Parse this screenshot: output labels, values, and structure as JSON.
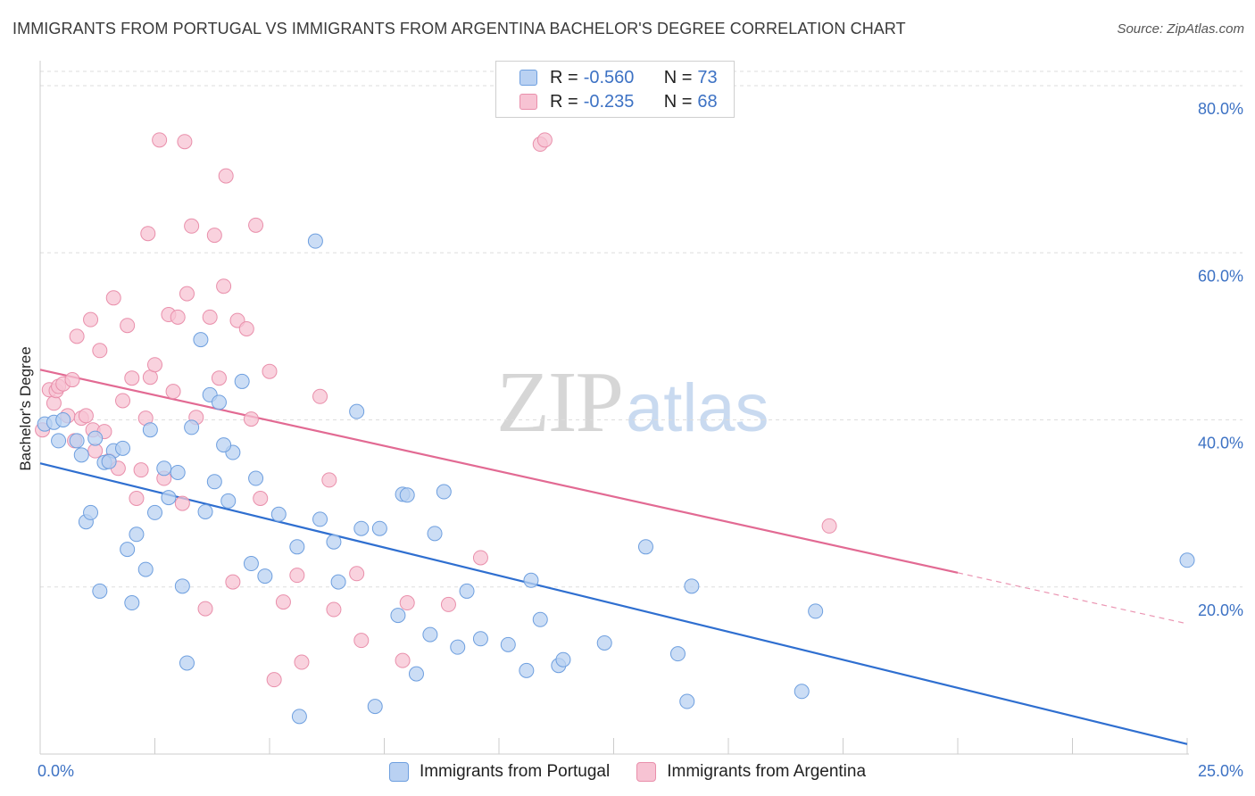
{
  "title": "IMMIGRANTS FROM PORTUGAL VS IMMIGRANTS FROM ARGENTINA BACHELOR'S DEGREE CORRELATION CHART",
  "source": "Source: ZipAtlas.com",
  "watermark": {
    "zip": "ZIP",
    "atlas": "atlas"
  },
  "legend": {
    "rows": [
      {
        "r_label": "R =",
        "r_value": "-0.560",
        "n_label": "N =",
        "n_value": "73"
      },
      {
        "r_label": "R =",
        "r_value": "-0.235",
        "n_label": "N =",
        "n_value": "68"
      }
    ]
  },
  "colors": {
    "portugal_fill": "#b9d1f2",
    "portugal_stroke": "#6e9fdf",
    "portugal_line": "#2f6fd0",
    "argentina_fill": "#f7c3d3",
    "argentina_stroke": "#e98fab",
    "argentina_line": "#e26a93",
    "grid": "#dddddd",
    "axis_text": "#3d72c4"
  },
  "chart_data": {
    "type": "scatter",
    "title": "IMMIGRANTS FROM PORTUGAL VS IMMIGRANTS FROM ARGENTINA BACHELOR'S DEGREE CORRELATION CHART",
    "xlabel": "",
    "ylabel": "Bachelor's Degree",
    "xlim": [
      0,
      25
    ],
    "ylim": [
      0,
      80
    ],
    "x_tick_labels": [
      "0.0%",
      "25.0%"
    ],
    "y_ticks": [
      20,
      40,
      60,
      80
    ],
    "y_tick_labels": [
      "20.0%",
      "40.0%",
      "60.0%",
      "80.0%"
    ],
    "grid": true,
    "legend_position": "top-center",
    "series": [
      {
        "name": "Immigrants from Portugal",
        "r": -0.56,
        "n": 73,
        "trend": {
          "x": [
            0,
            25
          ],
          "y": [
            34.8,
            1.2
          ]
        },
        "points": [
          [
            0.1,
            39.5
          ],
          [
            0.3,
            39.7
          ],
          [
            0.4,
            37.5
          ],
          [
            0.5,
            40.0
          ],
          [
            0.8,
            37.5
          ],
          [
            0.9,
            35.8
          ],
          [
            1.0,
            27.8
          ],
          [
            1.1,
            28.9
          ],
          [
            1.2,
            37.8
          ],
          [
            1.3,
            19.5
          ],
          [
            1.4,
            34.9
          ],
          [
            1.6,
            36.3
          ],
          [
            1.8,
            36.6
          ],
          [
            1.9,
            24.5
          ],
          [
            2.0,
            18.1
          ],
          [
            2.1,
            26.3
          ],
          [
            2.3,
            22.1
          ],
          [
            2.4,
            38.8
          ],
          [
            2.5,
            28.9
          ],
          [
            2.7,
            34.2
          ],
          [
            2.8,
            30.7
          ],
          [
            3.0,
            33.7
          ],
          [
            3.1,
            20.1
          ],
          [
            3.2,
            10.9
          ],
          [
            3.3,
            39.1
          ],
          [
            3.5,
            49.6
          ],
          [
            3.6,
            29.0
          ],
          [
            3.7,
            43.0
          ],
          [
            3.8,
            32.6
          ],
          [
            3.9,
            42.1
          ],
          [
            4.1,
            30.3
          ],
          [
            4.2,
            36.1
          ],
          [
            4.4,
            44.6
          ],
          [
            4.6,
            22.8
          ],
          [
            4.7,
            33.0
          ],
          [
            4.9,
            21.3
          ],
          [
            5.2,
            28.7
          ],
          [
            5.6,
            24.8
          ],
          [
            5.65,
            4.5
          ],
          [
            6.0,
            61.4
          ],
          [
            6.1,
            28.1
          ],
          [
            6.4,
            25.4
          ],
          [
            6.5,
            20.6
          ],
          [
            6.9,
            41.0
          ],
          [
            7.0,
            27.0
          ],
          [
            7.3,
            5.7
          ],
          [
            7.4,
            27.0
          ],
          [
            7.8,
            16.6
          ],
          [
            7.9,
            31.1
          ],
          [
            8.0,
            31.0
          ],
          [
            8.2,
            9.6
          ],
          [
            8.5,
            14.3
          ],
          [
            8.6,
            26.4
          ],
          [
            8.8,
            31.4
          ],
          [
            9.1,
            12.8
          ],
          [
            9.3,
            19.5
          ],
          [
            9.6,
            13.8
          ],
          [
            10.2,
            13.1
          ],
          [
            10.6,
            10.0
          ],
          [
            10.7,
            20.8
          ],
          [
            10.9,
            16.1
          ],
          [
            11.3,
            10.6
          ],
          [
            11.4,
            11.3
          ],
          [
            12.3,
            13.3
          ],
          [
            13.2,
            24.8
          ],
          [
            13.9,
            12.0
          ],
          [
            14.1,
            6.3
          ],
          [
            14.2,
            20.1
          ],
          [
            16.6,
            7.5
          ],
          [
            16.9,
            17.1
          ],
          [
            25.0,
            23.2
          ],
          [
            1.5,
            35.0
          ],
          [
            4.0,
            37.0
          ]
        ]
      },
      {
        "name": "Immigrants from Argentina",
        "r": -0.235,
        "n": 68,
        "trend": {
          "x": [
            0,
            20
          ],
          "y": [
            46.0,
            21.7
          ],
          "dashed_extension": {
            "x": [
              20,
              25
            ],
            "y": [
              21.7,
              15.6
            ]
          }
        },
        "points": [
          [
            0.05,
            38.8
          ],
          [
            0.2,
            43.6
          ],
          [
            0.3,
            42.0
          ],
          [
            0.35,
            43.5
          ],
          [
            0.4,
            44.0
          ],
          [
            0.5,
            44.3
          ],
          [
            0.6,
            40.5
          ],
          [
            0.7,
            44.8
          ],
          [
            0.75,
            37.5
          ],
          [
            0.8,
            50.0
          ],
          [
            0.9,
            40.2
          ],
          [
            1.0,
            40.5
          ],
          [
            1.1,
            52.0
          ],
          [
            1.15,
            38.8
          ],
          [
            1.2,
            36.3
          ],
          [
            1.3,
            48.3
          ],
          [
            1.4,
            38.6
          ],
          [
            1.5,
            35.1
          ],
          [
            1.6,
            54.6
          ],
          [
            1.7,
            34.2
          ],
          [
            1.8,
            42.3
          ],
          [
            1.9,
            51.3
          ],
          [
            2.0,
            45.0
          ],
          [
            2.1,
            30.6
          ],
          [
            2.2,
            34.0
          ],
          [
            2.3,
            40.2
          ],
          [
            2.35,
            62.3
          ],
          [
            2.4,
            45.1
          ],
          [
            2.5,
            46.6
          ],
          [
            2.6,
            73.5
          ],
          [
            2.7,
            33.0
          ],
          [
            2.8,
            52.6
          ],
          [
            2.9,
            43.4
          ],
          [
            3.0,
            52.3
          ],
          [
            3.1,
            30.0
          ],
          [
            3.15,
            73.3
          ],
          [
            3.2,
            55.1
          ],
          [
            3.3,
            63.2
          ],
          [
            3.4,
            40.3
          ],
          [
            3.6,
            17.4
          ],
          [
            3.7,
            52.3
          ],
          [
            3.8,
            62.1
          ],
          [
            3.9,
            45.0
          ],
          [
            4.0,
            56.0
          ],
          [
            4.05,
            69.2
          ],
          [
            4.2,
            20.6
          ],
          [
            4.3,
            51.9
          ],
          [
            4.5,
            50.9
          ],
          [
            4.6,
            40.1
          ],
          [
            4.7,
            63.3
          ],
          [
            4.8,
            30.6
          ],
          [
            5.0,
            45.8
          ],
          [
            5.1,
            8.9
          ],
          [
            5.3,
            18.2
          ],
          [
            5.6,
            21.4
          ],
          [
            5.7,
            11.0
          ],
          [
            6.1,
            42.8
          ],
          [
            6.3,
            32.8
          ],
          [
            6.4,
            17.3
          ],
          [
            6.9,
            21.6
          ],
          [
            7.0,
            13.6
          ],
          [
            7.9,
            11.2
          ],
          [
            8.0,
            18.1
          ],
          [
            8.9,
            17.9
          ],
          [
            9.6,
            23.5
          ],
          [
            10.9,
            73.0
          ],
          [
            11.0,
            73.5
          ],
          [
            17.2,
            27.3
          ]
        ]
      }
    ]
  },
  "bottom_legend": [
    {
      "label": "Immigrants from Portugal"
    },
    {
      "label": "Immigrants from Argentina"
    }
  ]
}
